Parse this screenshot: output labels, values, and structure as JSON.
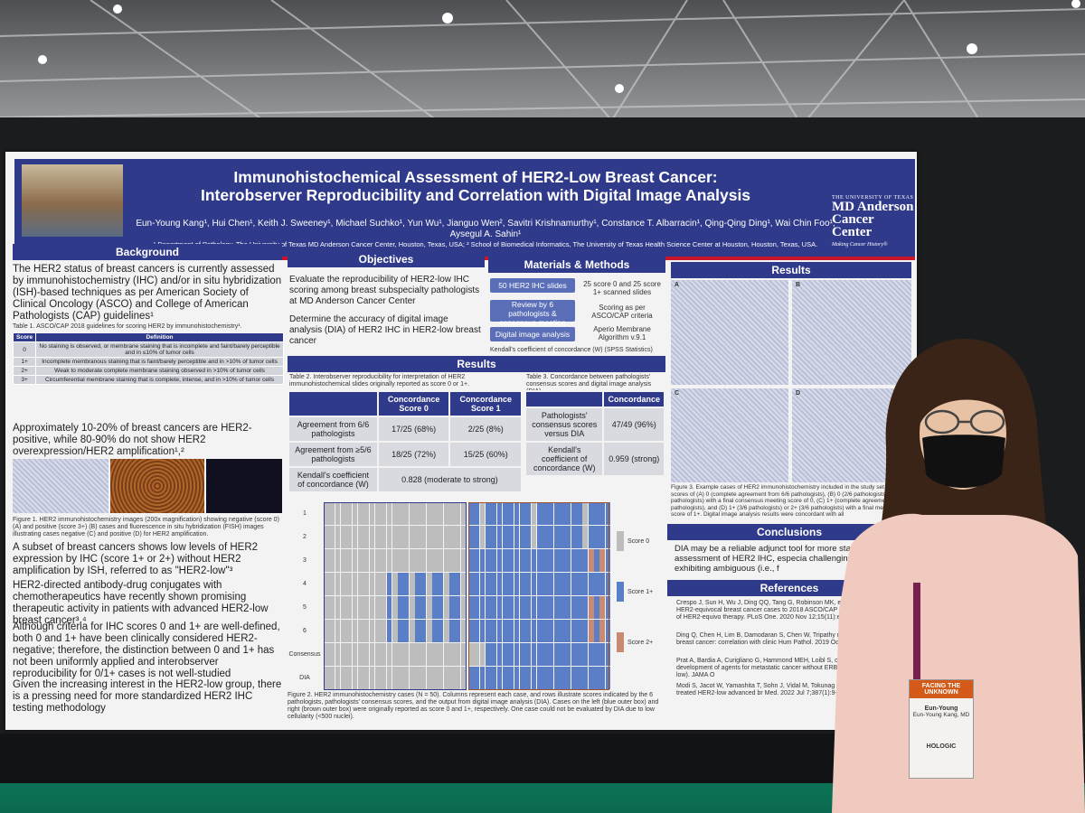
{
  "title_line1": "Immunohistochemical Assessment of HER2-Low Breast Cancer:",
  "title_line2": "Interobserver Reproducibility and Correlation with Digital Image Analysis",
  "authors": "Eun-Young Kang¹, Hui Chen¹, Keith J. Sweeney¹, Michael Suchko¹, Yun Wu¹, Jianguo Wen², Savitri Krishnamurthy¹, Constance T. Albarracin¹, Qing-Qing Ding¹, Wai Chin Foo¹, Aysegul A. Sahin¹",
  "affiliations": "¹ Department of Pathology, The University of Texas MD Anderson Cancer Center, Houston, Texas, USA; ² School of Biomedical Informatics, The University of Texas Health Science Center at Houston, Houston, Texas, USA.",
  "logo": {
    "top": "THE UNIVERSITY OF TEXAS",
    "line1": "MD Anderson",
    "line2": "Cancer Center",
    "tagline": "Making Cancer History®"
  },
  "sections": {
    "background": "Background",
    "objectives": "Objectives",
    "methods": "Materials & Methods",
    "results": "Results",
    "results2": "Results",
    "conclusions": "Conclusions",
    "references": "References"
  },
  "background": {
    "p1": "The HER2 status of breast cancers is currently assessed by immunohistochemistry (IHC) and/or in situ hybridization (ISH)-based techniques as per American Society of Clinical Oncology (ASCO) and College of American Pathologists (CAP) guidelines¹",
    "table_caption": "Table 1. ASCO/CAP 2018 guidelines for scoring HER2 by immunohistochemistry¹.",
    "table_headers": [
      "Score",
      "Definition"
    ],
    "table_rows": [
      [
        "0",
        "No staining is observed, or membrane staining that is incomplete and faint/barely perceptible and in ≤10% of tumor cells"
      ],
      [
        "1+",
        "Incomplete membranous staining that is faint/barely perceptible and in >10% of tumor cells"
      ],
      [
        "2+",
        "Weak to moderate complete membrane staining observed in >10% of tumor cells"
      ],
      [
        "3+",
        "Circumferential membrane staining that is complete, intense, and in >10% of tumor cells"
      ]
    ],
    "p2": "Approximately 10-20% of breast cancers are HER2-positive, while 80-90% do not show HER2 overexpression/HER2 amplification¹,²",
    "figure_caption": "Figure 1. HER2 immunohistochemistry images (200x magnification) showing negative (score 0) (A) and positive (score 3+) (B) cases and fluorescence in situ hybridization (FISH) images illustrating cases negative (C) and positive (D) for HER2 amplification.",
    "p3": "A subset of breast cancers shows low levels of HER2 expression by IHC (score 1+ or 2+) without HER2 amplification by ISH, referred to as \"HER2-low\"³",
    "p4": "HER2-directed antibody-drug conjugates with chemotherapeutics have recently shown promising therapeutic activity in patients with advanced HER2-low breast cancer³,⁴",
    "p5": "Although criteria for IHC scores 0 and 1+ are well-defined, both 0 and 1+ have been clinically considered HER2-negative; therefore, the distinction between 0 and 1+ has not been uniformly applied and interobserver reproducibility for 0/1+ cases is not well-studied",
    "p6": "Given the increasing interest in the HER2-low group, there is a pressing need for more standardized HER2 IHC testing methodology"
  },
  "objectives": {
    "o1": "Evaluate the reproducibility of HER2-low IHC scoring among breast subspecialty pathologists at MD Anderson Cancer Center",
    "o2": "Determine the accuracy of digital image analysis (DIA) of HER2 IHC in HER2-low breast cancer"
  },
  "methods": {
    "box1": "50 HER2 IHC slides",
    "box2": "Review by 6 pathologists & consensus meeting",
    "box3": "Digital image analysis",
    "note1": "25 score 0 and 25 score 1+ scanned slides",
    "note2": "Scoring as per ASCO/CAP criteria",
    "note3": "Aperio Membrane Algorithm v.9.1",
    "bullet": "Kendall's coefficient of concordance (W) (SPSS Statistics)"
  },
  "table2": {
    "caption": "Table 2. Interobserver reproducibility for interpretation of HER2 immunohistochemical slides originally reported as score 0 or 1+.",
    "headers": [
      "",
      "Concordance Score 0",
      "Concordance Score 1"
    ],
    "rows": [
      [
        "Agreement from 6/6 pathologists",
        "17/25 (68%)",
        "2/25 (8%)"
      ],
      [
        "Agreement from ≥5/6 pathologists",
        "18/25 (72%)",
        "15/25 (60%)"
      ],
      [
        "Kendall's coefficient of concordance (W)",
        "0.828 (moderate to strong)",
        ""
      ]
    ]
  },
  "table3": {
    "caption": "Table 3. Concordance between pathologists' consensus scores and digital image analysis (DIA).",
    "headers": [
      "",
      "Concordance"
    ],
    "rows": [
      [
        "Pathologists' consensus scores versus DIA",
        "47/49 (96%)"
      ],
      [
        "Kendall's coefficient of concordance (W)",
        "0.959 (strong)"
      ]
    ]
  },
  "heatmap": {
    "row_labels": [
      "1",
      "2",
      "3",
      "4",
      "5",
      "6",
      "Consensus",
      "DIA"
    ],
    "legend": [
      "Score 0",
      "Score 1+",
      "Score 2+"
    ],
    "colors": {
      "score0": "#bdbdbd",
      "score1": "#5b7fc6",
      "score2": "#c98a72"
    },
    "caption": "Figure 2. HER2 immunohistochemistry cases (N = 50). Columns represent each case, and rows illustrate scores indicated by the 6 pathologists, pathologists' consensus scores, and the output from digital image analysis (DIA). Cases on the left (blue outer box) and right (brown outer box) were originally reported as score 0 and 1+, respectively. One case could not be evaluated by DIA due to low cellularity (<500 nuclei)."
  },
  "results_figure": {
    "panel_labels": [
      "A",
      "B",
      "C",
      "D"
    ],
    "caption": "Figure 3. Example cases of HER2 immunohistochemistry included in the study set and scores of (A) 0 (complete agreement from 6/6 pathologists), (B) 0 (2/6 pathologists) pathologists) with a final consensus meeting score of 0, (C) 1+ (complete agreement pathologists), and (D) 1+ (3/6 pathologists) or 2+ (3/6 pathologists) with a final meeting score of 1+. Digital image analysis results were concordant with all"
  },
  "conclusions": {
    "c1": "DIA may be a reliable adjunct tool for more sta quantitative assessment of HER2 IHC, especia challenging cases exhibiting ambiguous (i.e., f"
  },
  "references": [
    "Crespo J, Sun H, Wu J, Ding QQ, Tang G, Robinson MK, e reclassification of HER2-equivocal breast cancer cases to 2018 ASCO/CAP guidelines and response of HER2-equivo therapy. PLoS One. 2020 Nov 12;15(11):e0241775.",
    "Ding Q, Chen H, Lim B, Damodaran S, Chen W, Tripathy mutation analysis in breast cancer: correlation with clinic Hum Pathol. 2019 Oct;92:32-38.",
    "Prat A, Bardia A, Curigliano G, Hammond MEH, Loibl S, overview of clinical development of agents for metastatic cancer without ERBB2 amplification (HER2-low). JAMA O",
    "Modi S, Jacot W, Yamashita T, Sohn J, Vidal M, Tokunag deruxtecan in previously treated HER2-low advanced br Med. 2022 Jul 7;387(1):9-20."
  ],
  "badge": {
    "event": "FACING THE UNKNOWN",
    "name": "Eun-Young",
    "full_name": "Eun-Young Kang, MD",
    "sponsor": "HOLOGIC"
  }
}
